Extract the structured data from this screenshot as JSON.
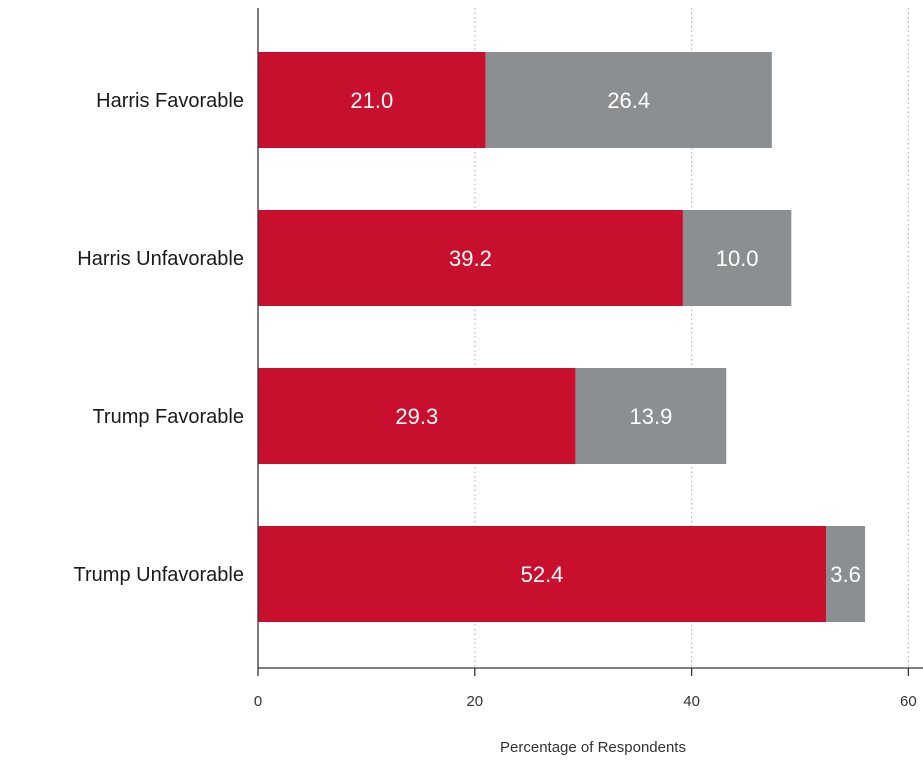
{
  "chart_data": {
    "type": "bar",
    "orientation": "horizontal",
    "stacked": true,
    "categories": [
      "Harris Favorable",
      "Harris Unfavorable",
      "Trump Favorable",
      "Trump Unfavorable"
    ],
    "series": [
      {
        "values": [
          21.0,
          39.2,
          29.3,
          52.4
        ],
        "color": "#c8102e"
      },
      {
        "values": [
          26.4,
          10.0,
          13.9,
          3.6
        ],
        "color": "#8c8f91"
      }
    ],
    "data_labels": [
      [
        "21.0",
        "39.2",
        "29.3",
        "52.4"
      ],
      [
        "26.4",
        "10.0",
        "13.9",
        "3.6"
      ]
    ],
    "xlabel": "Percentage of Respondents",
    "xlim": [
      0,
      60
    ],
    "xticks": [
      0,
      20,
      40,
      60
    ],
    "xtick_labels": [
      "0",
      "20",
      "40",
      "60"
    ],
    "grid": "vertical dotted",
    "colors": {
      "axis": "#333333",
      "grid": "#b5b5b5"
    }
  }
}
